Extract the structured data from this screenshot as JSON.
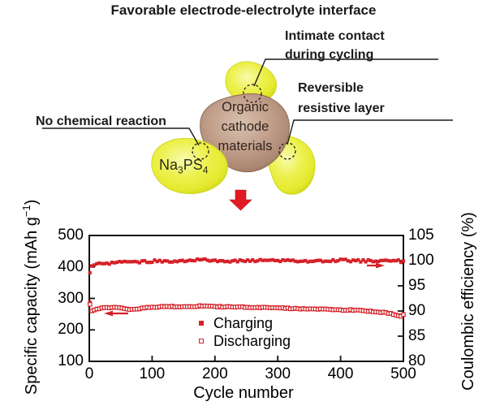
{
  "diagram": {
    "title": "Favorable electrode-electrolyte interface",
    "annotations": {
      "intimate_contact": {
        "line1": "Intimate contact",
        "line2": "during cycling"
      },
      "reversible": {
        "line1": "Reversible",
        "line2": "resistive layer"
      },
      "no_chemical_reaction": "No chemical reaction"
    },
    "cathode_label": {
      "line1": "Organic",
      "line2": "cathode",
      "line3": "materials"
    },
    "electrolyte_label": {
      "pre": "Na",
      "sub1": "3",
      "mid": "PS",
      "sub2": "4"
    },
    "colors": {
      "electrolyte_yellow": "#e8ec3a",
      "cathode_brown": "#b3917d",
      "accent_red": "#d62128"
    }
  },
  "chart_data": {
    "type": "scatter",
    "title": "",
    "xlabel": "Cycle number",
    "ylabel_left": "Specific capacity (mAh g−1)",
    "ylabel_left_parts": {
      "pre": "Specific capacity (mAh g",
      "sup": "−1",
      "post": ")"
    },
    "ylabel_right": "Coulombic efficiency (%)",
    "xlim": [
      0,
      500
    ],
    "ylim_left": [
      100,
      500
    ],
    "ylim_right": [
      80,
      105
    ],
    "xticks": [
      0,
      100,
      200,
      300,
      400,
      500
    ],
    "yticks_left": [
      100,
      200,
      300,
      400,
      500
    ],
    "yticks_right": [
      80,
      85,
      90,
      95,
      100,
      105
    ],
    "grid": false,
    "legend": [
      "Charging",
      "Discharging"
    ],
    "legend_position": "inside-bottom-center",
    "marker_color": "#d62128",
    "x": [
      1,
      2,
      3,
      5,
      8,
      10,
      15,
      20,
      30,
      40,
      50,
      60,
      70,
      80,
      90,
      100,
      120,
      140,
      160,
      180,
      200,
      220,
      240,
      260,
      280,
      300,
      320,
      340,
      360,
      380,
      400,
      420,
      440,
      460,
      480,
      490,
      495,
      500
    ],
    "series": [
      {
        "name": "Charging",
        "axis": "left",
        "marker": "filled-square",
        "values": [
          288,
          273,
          264,
          262,
          265,
          267,
          269,
          271,
          272,
          273,
          273,
          268,
          267,
          270,
          272,
          274,
          276,
          276,
          276,
          278,
          276,
          275,
          274,
          274,
          273,
          272,
          270,
          269,
          269,
          267,
          265,
          265,
          262,
          259,
          254,
          249,
          246,
          251
        ]
      },
      {
        "name": "Discharging",
        "axis": "left",
        "marker": "open-square",
        "values": [
          281,
          270,
          262,
          260,
          263,
          265,
          267,
          269,
          270,
          271,
          271,
          266,
          265,
          268,
          270,
          272,
          274,
          274,
          274,
          276,
          274,
          273,
          272,
          272,
          271,
          270,
          268,
          267,
          267,
          265,
          263,
          263,
          260,
          257,
          252,
          247,
          243,
          249
        ]
      },
      {
        "name": "Coulombic efficiency",
        "axis": "right",
        "marker": "filled-square",
        "values": [
          97.6,
          98.2,
          98.6,
          98.9,
          99.1,
          99.2,
          99.3,
          99.4,
          99.5,
          99.6,
          99.8,
          99.6,
          99.7,
          99.7,
          99.8,
          99.9,
          99.9,
          99.9,
          100.0,
          100.3,
          100.0,
          99.9,
          100.0,
          100.0,
          100.0,
          99.9,
          100.0,
          100.0,
          99.9,
          100.0,
          100.1,
          100.0,
          99.9,
          100.0,
          99.9,
          100.0,
          99.8,
          100.0
        ]
      }
    ]
  }
}
